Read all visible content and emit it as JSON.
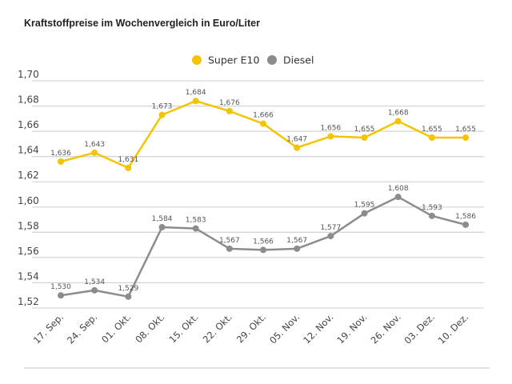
{
  "chart_data": {
    "type": "line",
    "title": "Kraftstoffpreise im Wochenvergleich in Euro/Liter",
    "xlabel": "",
    "ylabel": "",
    "categories": [
      "17. Sep.",
      "24. Sep.",
      "01. Okt.",
      "08. Okt.",
      "15. Okt.",
      "22. Okt.",
      "29. Okt.",
      "05. Nov.",
      "12. Nov.",
      "19. Nov.",
      "26. Nov.",
      "03. Dez.",
      "10. Dez."
    ],
    "ylim": [
      1.52,
      1.7
    ],
    "yticks": [
      "1,52",
      "1,54",
      "1,56",
      "1,58",
      "1,60",
      "1,62",
      "1,64",
      "1,66",
      "1,68",
      "1,70"
    ],
    "grid": "horizontal",
    "legend_position": "top-center",
    "series": [
      {
        "name": "Super E10",
        "color": "#f5c400",
        "values": [
          1.636,
          1.643,
          1.631,
          1.673,
          1.684,
          1.676,
          1.666,
          1.647,
          1.656,
          1.655,
          1.668,
          1.655,
          1.655
        ],
        "labels": [
          "1,636",
          "1,643",
          "1,631",
          "1,673",
          "1,684",
          "1,676",
          "1,666",
          "1,647",
          "1,656",
          "1,655",
          "1,668",
          "1,655",
          "1,655"
        ]
      },
      {
        "name": "Diesel",
        "color": "#8c8c8c",
        "values": [
          1.53,
          1.534,
          1.529,
          1.584,
          1.583,
          1.567,
          1.566,
          1.567,
          1.577,
          1.595,
          1.608,
          1.593,
          1.586
        ],
        "labels": [
          "1,530",
          "1,534",
          "1,529",
          "1,584",
          "1,583",
          "1,567",
          "1,566",
          "1,567",
          "1,577",
          "1,595",
          "1,608",
          "1,593",
          "1,586"
        ]
      }
    ]
  }
}
